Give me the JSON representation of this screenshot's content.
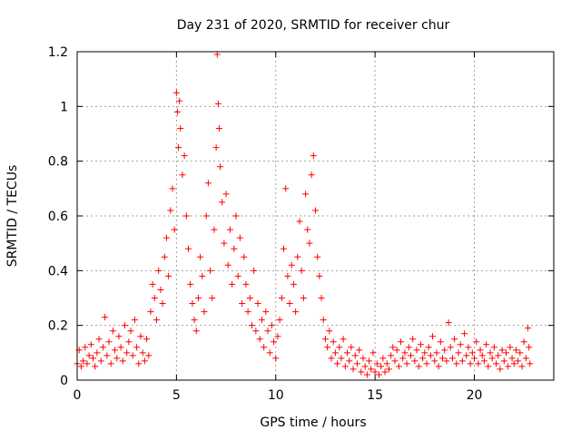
{
  "chart_data": {
    "type": "scatter",
    "title": "Day 231 of 2020, SRMTID for receiver chur",
    "xlabel": "GPS time / hours",
    "ylabel": "SRMTID / TECUs",
    "xlim": [
      0,
      24
    ],
    "ylim": [
      0,
      1.2
    ],
    "xticks": [
      0,
      5,
      10,
      15,
      20
    ],
    "yticks": [
      0,
      0.2,
      0.4,
      0.6,
      0.8,
      1,
      1.2
    ],
    "xtick_labels": [
      "0",
      "5",
      "10",
      "15",
      "20"
    ],
    "ytick_labels": [
      "0",
      "0.2",
      "0.4",
      "0.6",
      "0.8",
      "1",
      "1.2"
    ],
    "grid": true,
    "legend": "none",
    "marker": "plus",
    "marker_color": "#ff0000",
    "series": [
      {
        "name": "SRMTID",
        "points": [
          [
            0.0,
            0.06
          ],
          [
            0.1,
            0.11
          ],
          [
            0.2,
            0.05
          ],
          [
            0.3,
            0.07
          ],
          [
            0.4,
            0.12
          ],
          [
            0.5,
            0.06
          ],
          [
            0.6,
            0.09
          ],
          [
            0.7,
            0.13
          ],
          [
            0.8,
            0.08
          ],
          [
            0.9,
            0.05
          ],
          [
            1.0,
            0.1
          ],
          [
            1.1,
            0.15
          ],
          [
            1.2,
            0.07
          ],
          [
            1.3,
            0.12
          ],
          [
            1.4,
            0.23
          ],
          [
            1.5,
            0.09
          ],
          [
            1.6,
            0.14
          ],
          [
            1.7,
            0.06
          ],
          [
            1.8,
            0.18
          ],
          [
            1.9,
            0.11
          ],
          [
            2.0,
            0.08
          ],
          [
            2.1,
            0.16
          ],
          [
            2.2,
            0.12
          ],
          [
            2.3,
            0.07
          ],
          [
            2.4,
            0.2
          ],
          [
            2.5,
            0.1
          ],
          [
            2.6,
            0.14
          ],
          [
            2.7,
            0.18
          ],
          [
            2.8,
            0.09
          ],
          [
            2.9,
            0.22
          ],
          [
            3.0,
            0.12
          ],
          [
            3.1,
            0.06
          ],
          [
            3.2,
            0.16
          ],
          [
            3.3,
            0.1
          ],
          [
            3.4,
            0.07
          ],
          [
            3.5,
            0.15
          ],
          [
            3.6,
            0.09
          ],
          [
            3.7,
            0.25
          ],
          [
            3.8,
            0.35
          ],
          [
            3.9,
            0.3
          ],
          [
            4.0,
            0.22
          ],
          [
            4.1,
            0.4
          ],
          [
            4.2,
            0.33
          ],
          [
            4.3,
            0.28
          ],
          [
            4.4,
            0.45
          ],
          [
            4.5,
            0.52
          ],
          [
            4.6,
            0.38
          ],
          [
            4.7,
            0.62
          ],
          [
            4.8,
            0.7
          ],
          [
            4.9,
            0.55
          ],
          [
            5.0,
            1.05
          ],
          [
            5.05,
            0.98
          ],
          [
            5.1,
            0.85
          ],
          [
            5.15,
            1.02
          ],
          [
            5.2,
            0.92
          ],
          [
            5.3,
            0.75
          ],
          [
            5.4,
            0.82
          ],
          [
            5.5,
            0.6
          ],
          [
            5.6,
            0.48
          ],
          [
            5.7,
            0.35
          ],
          [
            5.8,
            0.28
          ],
          [
            5.9,
            0.22
          ],
          [
            6.0,
            0.18
          ],
          [
            6.1,
            0.3
          ],
          [
            6.2,
            0.45
          ],
          [
            6.3,
            0.38
          ],
          [
            6.4,
            0.25
          ],
          [
            6.5,
            0.6
          ],
          [
            6.6,
            0.72
          ],
          [
            6.7,
            0.4
          ],
          [
            6.8,
            0.3
          ],
          [
            6.9,
            0.55
          ],
          [
            7.0,
            0.85
          ],
          [
            7.05,
            1.19
          ],
          [
            7.1,
            1.01
          ],
          [
            7.15,
            0.92
          ],
          [
            7.2,
            0.78
          ],
          [
            7.3,
            0.65
          ],
          [
            7.4,
            0.5
          ],
          [
            7.5,
            0.68
          ],
          [
            7.6,
            0.42
          ],
          [
            7.7,
            0.55
          ],
          [
            7.8,
            0.35
          ],
          [
            7.9,
            0.48
          ],
          [
            8.0,
            0.6
          ],
          [
            8.1,
            0.38
          ],
          [
            8.2,
            0.52
          ],
          [
            8.3,
            0.28
          ],
          [
            8.4,
            0.45
          ],
          [
            8.5,
            0.35
          ],
          [
            8.6,
            0.25
          ],
          [
            8.7,
            0.3
          ],
          [
            8.8,
            0.2
          ],
          [
            8.9,
            0.4
          ],
          [
            9.0,
            0.18
          ],
          [
            9.1,
            0.28
          ],
          [
            9.2,
            0.15
          ],
          [
            9.3,
            0.22
          ],
          [
            9.4,
            0.12
          ],
          [
            9.5,
            0.25
          ],
          [
            9.6,
            0.18
          ],
          [
            9.7,
            0.1
          ],
          [
            9.8,
            0.2
          ],
          [
            9.9,
            0.14
          ],
          [
            10.0,
            0.08
          ],
          [
            10.1,
            0.16
          ],
          [
            10.2,
            0.22
          ],
          [
            10.3,
            0.3
          ],
          [
            10.4,
            0.48
          ],
          [
            10.5,
            0.7
          ],
          [
            10.6,
            0.38
          ],
          [
            10.7,
            0.28
          ],
          [
            10.8,
            0.42
          ],
          [
            10.9,
            0.35
          ],
          [
            11.0,
            0.25
          ],
          [
            11.1,
            0.45
          ],
          [
            11.2,
            0.58
          ],
          [
            11.3,
            0.4
          ],
          [
            11.4,
            0.3
          ],
          [
            11.5,
            0.68
          ],
          [
            11.6,
            0.55
          ],
          [
            11.7,
            0.5
          ],
          [
            11.8,
            0.75
          ],
          [
            11.9,
            0.82
          ],
          [
            12.0,
            0.62
          ],
          [
            12.1,
            0.45
          ],
          [
            12.2,
            0.38
          ],
          [
            12.3,
            0.3
          ],
          [
            12.4,
            0.22
          ],
          [
            12.5,
            0.15
          ],
          [
            12.6,
            0.12
          ],
          [
            12.7,
            0.18
          ],
          [
            12.8,
            0.08
          ],
          [
            12.9,
            0.14
          ],
          [
            13.0,
            0.1
          ],
          [
            13.1,
            0.06
          ],
          [
            13.2,
            0.12
          ],
          [
            13.3,
            0.08
          ],
          [
            13.4,
            0.15
          ],
          [
            13.5,
            0.05
          ],
          [
            13.6,
            0.1
          ],
          [
            13.7,
            0.07
          ],
          [
            13.8,
            0.12
          ],
          [
            13.9,
            0.04
          ],
          [
            14.0,
            0.09
          ],
          [
            14.1,
            0.06
          ],
          [
            14.2,
            0.11
          ],
          [
            14.3,
            0.03
          ],
          [
            14.4,
            0.08
          ],
          [
            14.5,
            0.05
          ],
          [
            14.6,
            0.02
          ],
          [
            14.7,
            0.07
          ],
          [
            14.8,
            0.04
          ],
          [
            14.9,
            0.1
          ],
          [
            15.0,
            0.03
          ],
          [
            15.1,
            0.06
          ],
          [
            15.2,
            0.02
          ],
          [
            15.3,
            0.05
          ],
          [
            15.4,
            0.08
          ],
          [
            15.5,
            0.03
          ],
          [
            15.6,
            0.06
          ],
          [
            15.7,
            0.04
          ],
          [
            15.8,
            0.09
          ],
          [
            15.9,
            0.12
          ],
          [
            16.0,
            0.07
          ],
          [
            16.1,
            0.11
          ],
          [
            16.2,
            0.05
          ],
          [
            16.3,
            0.14
          ],
          [
            16.4,
            0.08
          ],
          [
            16.5,
            0.1
          ],
          [
            16.6,
            0.06
          ],
          [
            16.7,
            0.12
          ],
          [
            16.8,
            0.09
          ],
          [
            16.9,
            0.15
          ],
          [
            17.0,
            0.07
          ],
          [
            17.1,
            0.11
          ],
          [
            17.2,
            0.05
          ],
          [
            17.3,
            0.13
          ],
          [
            17.4,
            0.08
          ],
          [
            17.5,
            0.1
          ],
          [
            17.6,
            0.06
          ],
          [
            17.7,
            0.12
          ],
          [
            17.8,
            0.09
          ],
          [
            17.9,
            0.16
          ],
          [
            18.0,
            0.07
          ],
          [
            18.1,
            0.1
          ],
          [
            18.2,
            0.05
          ],
          [
            18.3,
            0.14
          ],
          [
            18.4,
            0.08
          ],
          [
            18.5,
            0.11
          ],
          [
            18.6,
            0.07
          ],
          [
            18.7,
            0.21
          ],
          [
            18.8,
            0.12
          ],
          [
            18.9,
            0.08
          ],
          [
            19.0,
            0.15
          ],
          [
            19.1,
            0.06
          ],
          [
            19.2,
            0.1
          ],
          [
            19.3,
            0.13
          ],
          [
            19.4,
            0.07
          ],
          [
            19.5,
            0.17
          ],
          [
            19.6,
            0.09
          ],
          [
            19.7,
            0.12
          ],
          [
            19.8,
            0.06
          ],
          [
            19.9,
            0.1
          ],
          [
            20.0,
            0.08
          ],
          [
            20.1,
            0.14
          ],
          [
            20.2,
            0.06
          ],
          [
            20.3,
            0.11
          ],
          [
            20.4,
            0.09
          ],
          [
            20.5,
            0.07
          ],
          [
            20.6,
            0.13
          ],
          [
            20.7,
            0.05
          ],
          [
            20.8,
            0.1
          ],
          [
            20.9,
            0.08
          ],
          [
            21.0,
            0.12
          ],
          [
            21.1,
            0.06
          ],
          [
            21.2,
            0.09
          ],
          [
            21.3,
            0.04
          ],
          [
            21.4,
            0.11
          ],
          [
            21.5,
            0.07
          ],
          [
            21.6,
            0.1
          ],
          [
            21.7,
            0.05
          ],
          [
            21.8,
            0.12
          ],
          [
            21.9,
            0.08
          ],
          [
            22.0,
            0.06
          ],
          [
            22.1,
            0.11
          ],
          [
            22.2,
            0.07
          ],
          [
            22.3,
            0.1
          ],
          [
            22.4,
            0.05
          ],
          [
            22.5,
            0.14
          ],
          [
            22.6,
            0.08
          ],
          [
            22.7,
            0.19
          ],
          [
            22.75,
            0.12
          ],
          [
            22.8,
            0.06
          ]
        ]
      }
    ]
  }
}
